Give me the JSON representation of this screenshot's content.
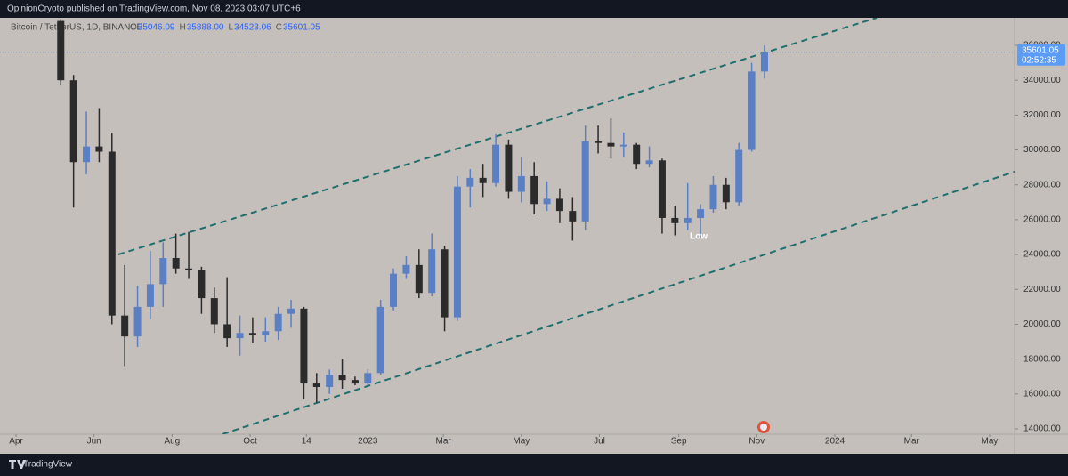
{
  "chart_data": {
    "type": "candlestick",
    "header": "OpinionCryoto published on TradingView.com, Nov 08, 2023 03:07 UTC+6",
    "symbol": "Bitcoin / TetherUS, 1D, BINANCE",
    "legend": [
      {
        "key": "O",
        "value": "35046.09"
      },
      {
        "key": "H",
        "value": "35888.00"
      },
      {
        "key": "L",
        "value": "34523.06"
      },
      {
        "key": "C",
        "value": "35601.05"
      }
    ],
    "footer": "TradingView",
    "up_color": "#5b7fc4",
    "down_color": "#2b2b2b",
    "xlim": [
      -12.5,
      780.5
    ],
    "ylim": [
      13694,
      37582
    ],
    "xticks": [
      {
        "value": 0,
        "label": "Apr"
      },
      {
        "value": 61,
        "label": "Jun"
      },
      {
        "value": 122,
        "label": "Aug"
      },
      {
        "value": 183,
        "label": "Oct"
      },
      {
        "value": 227,
        "label": "14"
      },
      {
        "value": 275,
        "label": "2023"
      },
      {
        "value": 334,
        "label": "Mar"
      },
      {
        "value": 395,
        "label": "May"
      },
      {
        "value": 456,
        "label": "Jul"
      },
      {
        "value": 518,
        "label": "Sep"
      },
      {
        "value": 579,
        "label": "Nov"
      },
      {
        "value": 640,
        "label": "2024"
      },
      {
        "value": 700,
        "label": "Mar"
      },
      {
        "value": 761,
        "label": "May"
      }
    ],
    "yticks": [
      {
        "value": 14000,
        "label": "14000.00"
      },
      {
        "value": 16000,
        "label": "16000.00"
      },
      {
        "value": 18000,
        "label": "18000.00"
      },
      {
        "value": 20000,
        "label": "20000.00"
      },
      {
        "value": 22000,
        "label": "22000.00"
      },
      {
        "value": 24000,
        "label": "24000.00"
      },
      {
        "value": 26000,
        "label": "26000.00"
      },
      {
        "value": 28000,
        "label": "28000.00"
      },
      {
        "value": 30000,
        "label": "30000.00"
      },
      {
        "value": 32000,
        "label": "32000.00"
      },
      {
        "value": 34000,
        "label": "34000.00"
      },
      {
        "value": 36000,
        "label": "36000.00"
      }
    ],
    "candles": {
      "x": [
        35,
        45,
        55,
        65,
        75,
        85,
        95,
        105,
        115,
        125,
        135,
        145,
        155,
        165,
        175,
        185,
        195,
        205,
        215,
        225,
        235,
        245,
        255,
        265,
        275,
        285,
        295,
        305,
        315,
        325,
        335,
        345,
        355,
        365,
        375,
        385,
        395,
        405,
        415,
        425,
        435,
        445,
        455,
        465,
        475,
        485,
        495,
        505,
        515,
        525,
        535,
        545,
        555,
        565,
        575,
        585
      ],
      "open": [
        37400,
        34000,
        29300,
        30200,
        29900,
        20500,
        19300,
        21000,
        22300,
        23800,
        23200,
        23100,
        21500,
        20000,
        19200,
        19500,
        19400,
        19600,
        20600,
        20900,
        16600,
        16400,
        17100,
        16800,
        16600,
        17200,
        21000,
        22900,
        23400,
        21800,
        24300,
        20400,
        27900,
        28400,
        28100,
        30300,
        27600,
        28500,
        26900,
        27200,
        26500,
        25900,
        30500,
        30400,
        30200,
        30300,
        29200,
        29400,
        26100,
        25800,
        26100,
        26600,
        28000,
        27000,
        30000,
        34500
      ],
      "high": [
        37500,
        34300,
        32200,
        32400,
        31000,
        23400,
        22200,
        24200,
        24700,
        25200,
        25300,
        23300,
        22100,
        22700,
        20500,
        20400,
        20400,
        21000,
        21400,
        21000,
        17200,
        17400,
        18000,
        17000,
        17400,
        21400,
        23200,
        23900,
        24300,
        25200,
        24500,
        28500,
        28900,
        29200,
        30900,
        30600,
        29600,
        29300,
        28200,
        27800,
        27300,
        31400,
        31400,
        31800,
        31000,
        30400,
        30200,
        29500,
        26800,
        28100,
        26900,
        28500,
        28400,
        30400,
        35000,
        36000
      ],
      "low": [
        33700,
        26700,
        28600,
        29300,
        20000,
        17600,
        18700,
        20300,
        21000,
        22900,
        22600,
        20600,
        19500,
        18700,
        18200,
        18900,
        19000,
        19100,
        19800,
        15700,
        15500,
        16000,
        16300,
        16500,
        16500,
        17100,
        20800,
        22600,
        21500,
        21600,
        19600,
        20200,
        26700,
        27300,
        27900,
        27200,
        27000,
        26300,
        26500,
        25800,
        24800,
        25400,
        29800,
        29500,
        29600,
        28900,
        29000,
        25200,
        25100,
        25400,
        25000,
        26400,
        26600,
        26800,
        29900,
        34100
      ],
      "close": [
        34000,
        29300,
        30200,
        29900,
        20500,
        19300,
        21000,
        22300,
        23800,
        23200,
        23100,
        21500,
        20000,
        19200,
        19500,
        19400,
        19600,
        20600,
        20900,
        16600,
        16400,
        17100,
        16800,
        16600,
        17200,
        21000,
        22900,
        23400,
        21800,
        24300,
        20400,
        27900,
        28400,
        28100,
        30300,
        27600,
        28500,
        26900,
        27200,
        26500,
        25900,
        30500,
        30400,
        30200,
        30300,
        29200,
        29400,
        26100,
        25800,
        26100,
        26600,
        28000,
        27000,
        30000,
        34500,
        35601.05
      ]
    },
    "last_price": 35601.05,
    "countdown": "02:52:35",
    "trendlines": [
      {
        "color": "#1e6e6e",
        "points": [
          [
            80,
            24005
          ],
          [
            672.7,
            37582
          ]
        ]
      },
      {
        "color": "#1e6e6e",
        "points": [
          [
            161.4,
            13694
          ],
          [
            780.5,
            28752
          ]
        ]
      }
    ],
    "annotation": {
      "text": "Low",
      "x": 526.6,
      "y": 25026
    }
  }
}
